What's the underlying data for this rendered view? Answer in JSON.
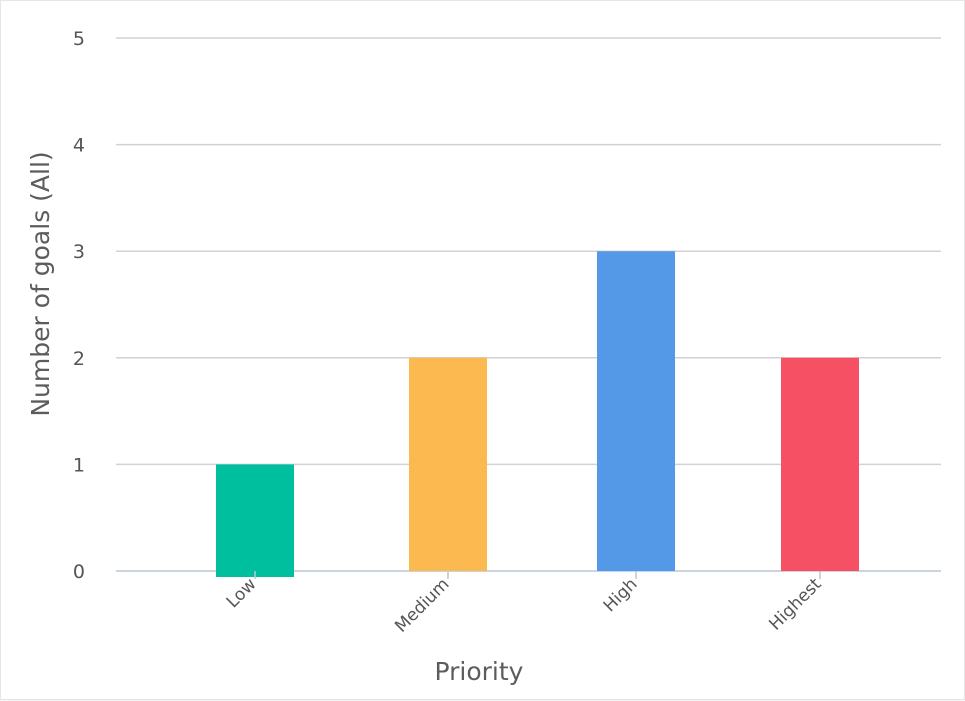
{
  "chart_data": {
    "type": "bar",
    "categories": [
      "Low",
      "Medium",
      "High",
      "Highest"
    ],
    "values": [
      1,
      2,
      3,
      2
    ],
    "colors": [
      "#00bf9f",
      "#fbb950",
      "#5399e8",
      "#f65064"
    ],
    "title": "",
    "xlabel": "Priority",
    "ylabel": "Number of goals (All)",
    "ylim": [
      0,
      5
    ],
    "yticks": [
      "0",
      "1",
      "2",
      "3",
      "4",
      "5"
    ],
    "grid": true,
    "legend": "none"
  }
}
